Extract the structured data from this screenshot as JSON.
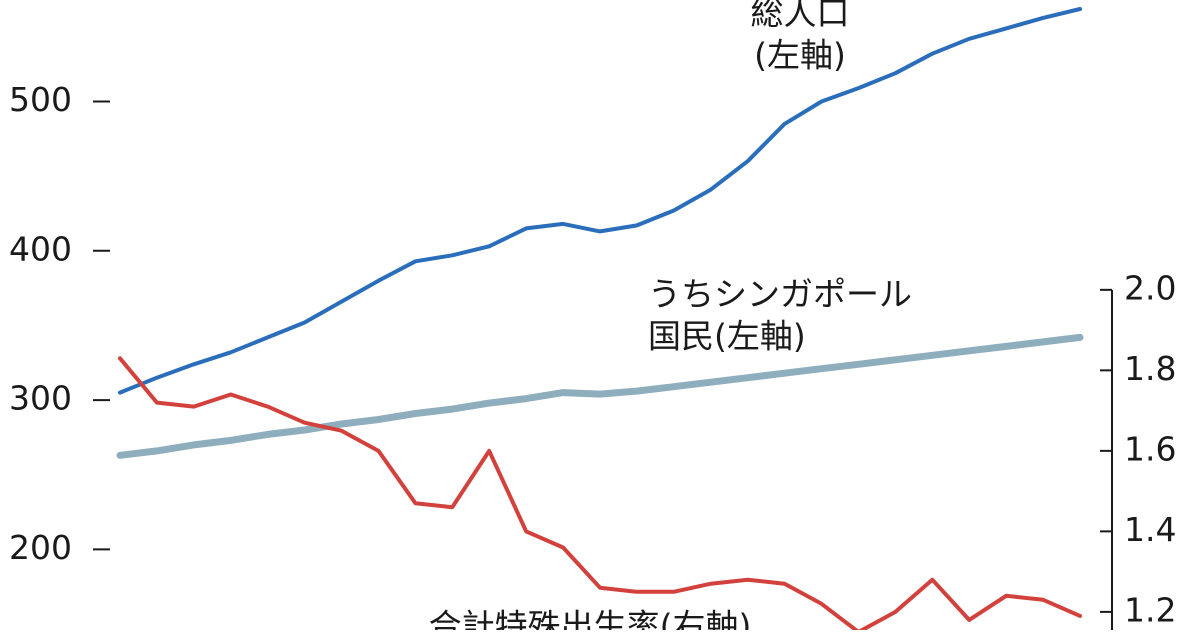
{
  "chart_data": {
    "type": "line",
    "categories": [
      null,
      null,
      null,
      null,
      null,
      null,
      null,
      null,
      null,
      null,
      null,
      null,
      null,
      null,
      null,
      null,
      null,
      null,
      null,
      null,
      null,
      null,
      null,
      null,
      null,
      null,
      null
    ],
    "ylim": [
      146,
      568
    ],
    "yticks": [
      200,
      300,
      400,
      500
    ],
    "y2lim": [
      1.155,
      2.72
    ],
    "y2ticks": [
      {
        "value": 1.2,
        "label": "1.2"
      },
      {
        "value": 1.4,
        "label": "1.4"
      },
      {
        "value": 1.6,
        "label": "1.6"
      },
      {
        "value": 1.8,
        "label": "1.8"
      },
      {
        "value": 2.0,
        "label": "2.0"
      }
    ],
    "series": [
      {
        "label_lines": [
          "総人口",
          "(左軸)"
        ],
        "color": "#2a6ebb",
        "width": 4,
        "values": [
          305,
          315,
          324,
          332,
          342,
          352,
          366,
          380,
          393,
          397,
          403,
          415,
          418,
          413,
          417,
          427,
          441,
          460,
          485,
          500,
          509,
          519,
          532,
          542,
          549,
          556,
          562
        ]
      },
      {
        "label_lines": [
          "うちシンガポール",
          "国民(左軸)"
        ],
        "color": "#8eaebe",
        "width": 7,
        "values": [
          263,
          266,
          270,
          273,
          277,
          280,
          284,
          287,
          291,
          294,
          298,
          301,
          305,
          304,
          306,
          309,
          312,
          315,
          318,
          321,
          324,
          327,
          330,
          333,
          336,
          339,
          342
        ]
      },
      {
        "label_lines": [
          "合計特殊出生率(右軸)"
        ],
        "color": "#d2413c",
        "width": 4,
        "axis": "y2",
        "values": [
          1.83,
          1.72,
          1.71,
          1.74,
          1.71,
          1.67,
          1.65,
          1.6,
          1.47,
          1.46,
          1.6,
          1.4,
          1.36,
          1.26,
          1.25,
          1.25,
          1.27,
          1.28,
          1.27,
          1.22,
          1.15,
          1.2,
          1.28,
          1.18,
          1.24,
          1.23,
          1.19
        ]
      }
    ]
  }
}
